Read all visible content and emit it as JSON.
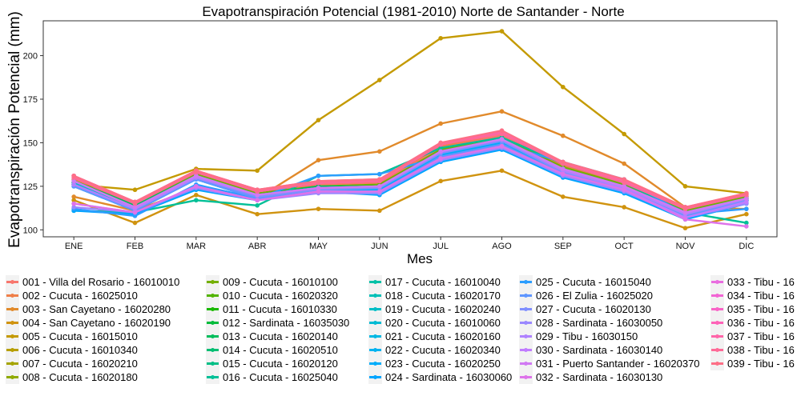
{
  "chart_data": {
    "type": "line",
    "title": "Evapotranspiración Potencial (1981-2010)  Norte de Santander - Norte",
    "xlabel": "Mes",
    "ylabel": "Evapotranspiración Potencial  (mm)",
    "categories": [
      "ENE",
      "FEB",
      "MAR",
      "ABR",
      "MAY",
      "JUN",
      "JUL",
      "AGO",
      "SEP",
      "OCT",
      "NOV",
      "DIC"
    ],
    "ylim": [
      96,
      220
    ],
    "yticks": [
      100,
      125,
      150,
      175,
      200
    ],
    "grid": false,
    "legend_position": "bottom",
    "series": [
      {
        "name": "001 - Villa del Rosario - 16010010",
        "color": "#F8766D",
        "values": [
          129,
          114,
          132,
          121,
          126,
          127,
          147,
          154,
          136,
          126,
          111,
          118
        ]
      },
      {
        "name": "002 - Cucuta - 16025010",
        "color": "#EF7F49",
        "values": [
          129,
          115,
          132,
          121,
          127,
          128,
          148,
          155,
          137,
          127,
          112,
          119
        ]
      },
      {
        "name": "003 - San Cayetano - 16020280",
        "color": "#E18A2B",
        "values": [
          119,
          111,
          124,
          118,
          140,
          145,
          161,
          168,
          154,
          138,
          113,
          112
        ]
      },
      {
        "name": "004 - San Cayetano - 16020190",
        "color": "#D0930F",
        "values": [
          117,
          104,
          120,
          109,
          112,
          111,
          128,
          134,
          119,
          113,
          101,
          109
        ]
      },
      {
        "name": "005 - Cucuta - 16015010",
        "color": "#C49A00",
        "values": [
          126,
          123,
          135,
          134,
          163,
          186,
          210,
          214,
          182,
          155,
          125,
          121
        ]
      },
      {
        "name": "006 - Cucuta - 16010340",
        "color": "#B79F00",
        "values": [
          127,
          113,
          131,
          120,
          124,
          124,
          144,
          151,
          134,
          124,
          109,
          118
        ]
      },
      {
        "name": "007 - Cucuta - 16020210",
        "color": "#A5A400",
        "values": [
          126,
          112,
          130,
          119,
          123,
          123,
          143,
          150,
          133,
          123,
          108,
          117
        ]
      },
      {
        "name": "008 - Cucuta - 16020180",
        "color": "#8FAA00",
        "values": [
          127,
          113,
          131,
          120,
          124,
          125,
          145,
          152,
          135,
          125,
          110,
          118
        ]
      },
      {
        "name": "009 - Cucuta - 16010100",
        "color": "#74AF00",
        "values": [
          128,
          114,
          132,
          121,
          125,
          126,
          146,
          153,
          136,
          126,
          111,
          119
        ]
      },
      {
        "name": "010 - Cucuta - 16020320",
        "color": "#53B400",
        "values": [
          126,
          112,
          130,
          119,
          123,
          123,
          143,
          150,
          133,
          123,
          108,
          117
        ]
      },
      {
        "name": "011 - Cucuta - 16010330",
        "color": "#1AB900",
        "values": [
          127,
          113,
          131,
          120,
          124,
          124,
          144,
          152,
          134,
          124,
          109,
          118
        ]
      },
      {
        "name": "012 - Sardinata - 16035030",
        "color": "#00BB3B",
        "values": [
          126,
          112,
          130,
          119,
          123,
          124,
          144,
          151,
          133,
          124,
          109,
          117
        ]
      },
      {
        "name": "013 - Cucuta - 16020140",
        "color": "#00BD5C",
        "values": [
          128,
          114,
          131,
          120,
          125,
          125,
          145,
          152,
          135,
          125,
          110,
          118
        ]
      },
      {
        "name": "014 - Cucuta - 16020510",
        "color": "#00BE72",
        "values": [
          127,
          113,
          131,
          120,
          124,
          124,
          144,
          151,
          134,
          124,
          109,
          118
        ]
      },
      {
        "name": "015 - Cucuta - 16020120",
        "color": "#00BF86",
        "values": [
          126,
          112,
          130,
          119,
          123,
          124,
          144,
          151,
          133,
          124,
          109,
          117
        ]
      },
      {
        "name": "016 - Cucuta - 16025040",
        "color": "#00C097",
        "values": [
          111,
          110,
          117,
          114,
          131,
          132,
          147,
          153,
          138,
          127,
          110,
          104
        ]
      },
      {
        "name": "017 - Cucuta - 16010040",
        "color": "#00C1A7",
        "values": [
          127,
          113,
          131,
          120,
          124,
          125,
          145,
          152,
          135,
          125,
          110,
          118
        ]
      },
      {
        "name": "018 - Cucuta - 16020170",
        "color": "#00C0B7",
        "values": [
          126,
          112,
          130,
          119,
          123,
          124,
          144,
          151,
          134,
          124,
          109,
          117
        ]
      },
      {
        "name": "019 - Cucuta - 16020240",
        "color": "#00BEC6",
        "values": [
          127,
          113,
          131,
          120,
          124,
          125,
          145,
          152,
          135,
          125,
          110,
          118
        ]
      },
      {
        "name": "020 - Cucuta - 16010060",
        "color": "#00BBD4",
        "values": [
          126,
          112,
          130,
          119,
          123,
          124,
          144,
          151,
          133,
          124,
          109,
          117
        ]
      },
      {
        "name": "021 - Cucuta - 16020160",
        "color": "#00B8E3",
        "values": [
          125,
          111,
          129,
          118,
          122,
          123,
          143,
          150,
          132,
          123,
          108,
          116
        ]
      },
      {
        "name": "022 - Cucuta - 16020340",
        "color": "#00B3F0",
        "values": [
          126,
          112,
          130,
          119,
          123,
          124,
          144,
          151,
          133,
          124,
          109,
          117
        ]
      },
      {
        "name": "023 - Cucuta - 16020250",
        "color": "#00ADFA",
        "values": [
          125,
          111,
          129,
          118,
          122,
          123,
          143,
          150,
          132,
          123,
          108,
          116
        ]
      },
      {
        "name": "024 - Sardinata - 16030060",
        "color": "#00A5FF",
        "values": [
          111,
          109,
          123,
          117,
          122,
          120,
          139,
          146,
          130,
          121,
          106,
          115
        ]
      },
      {
        "name": "025 - Cucuta - 16015040",
        "color": "#2B9DFF",
        "values": [
          112,
          108,
          126,
          118,
          131,
          132,
          142,
          149,
          139,
          129,
          109,
          112
        ]
      },
      {
        "name": "026 - El Zulia - 16025020",
        "color": "#5F96FF",
        "values": [
          125,
          111,
          129,
          118,
          122,
          122,
          142,
          149,
          132,
          123,
          108,
          116
        ]
      },
      {
        "name": "027 - Cucuta - 16020130",
        "color": "#808FFF",
        "values": [
          126,
          112,
          130,
          119,
          123,
          124,
          144,
          151,
          133,
          124,
          109,
          117
        ]
      },
      {
        "name": "028 - Sardinata - 16030050",
        "color": "#9A88FF",
        "values": [
          113,
          110,
          124,
          117,
          121,
          121,
          140,
          147,
          131,
          122,
          107,
          115
        ]
      },
      {
        "name": "029 - Tibu - 16030150",
        "color": "#AF82FF",
        "values": [
          126,
          112,
          130,
          120,
          124,
          125,
          145,
          152,
          134,
          124,
          109,
          118
        ]
      },
      {
        "name": "030 - Sardinata - 16030140",
        "color": "#C17CFF",
        "values": [
          115,
          110,
          125,
          117,
          122,
          122,
          141,
          148,
          132,
          123,
          107,
          116
        ]
      },
      {
        "name": "031 - Puerto Santander - 16020370",
        "color": "#D179F3",
        "values": [
          128,
          113,
          131,
          120,
          124,
          125,
          145,
          152,
          135,
          125,
          110,
          118
        ]
      },
      {
        "name": "032 - Sardinata - 16030130",
        "color": "#DE73EA",
        "values": [
          115,
          110,
          125,
          117,
          122,
          122,
          141,
          148,
          132,
          123,
          106,
          102
        ]
      },
      {
        "name": "033 - Tibu - 16",
        "color": "#E96DE0",
        "values": [
          131,
          116,
          134,
          123,
          127,
          128,
          149,
          156,
          138,
          128,
          113,
          120
        ]
      },
      {
        "name": "034 - Tibu - 16",
        "color": "#F265D4",
        "values": [
          130,
          116,
          134,
          122,
          127,
          128,
          149,
          156,
          138,
          128,
          113,
          120
        ]
      },
      {
        "name": "035 - Tibu - 16",
        "color": "#F963C7",
        "values": [
          131,
          116,
          134,
          123,
          127,
          128,
          149,
          156,
          138,
          128,
          113,
          120
        ]
      },
      {
        "name": "036 - Tibu - 16",
        "color": "#FE63B8",
        "values": [
          130,
          116,
          133,
          122,
          127,
          128,
          149,
          156,
          138,
          128,
          112,
          120
        ]
      },
      {
        "name": "037 - Tibu - 16",
        "color": "#FF65A9",
        "values": [
          131,
          116,
          134,
          123,
          128,
          129,
          150,
          156,
          139,
          128,
          113,
          121
        ]
      },
      {
        "name": "038 - Tibu - 16",
        "color": "#FF6A97",
        "values": [
          130,
          115,
          133,
          122,
          127,
          128,
          149,
          155,
          138,
          127,
          112,
          120
        ]
      },
      {
        "name": "039 - Tibu - 16",
        "color": "#FD6F86",
        "values": [
          131,
          116,
          134,
          123,
          128,
          129,
          150,
          157,
          139,
          129,
          113,
          121
        ]
      }
    ]
  }
}
